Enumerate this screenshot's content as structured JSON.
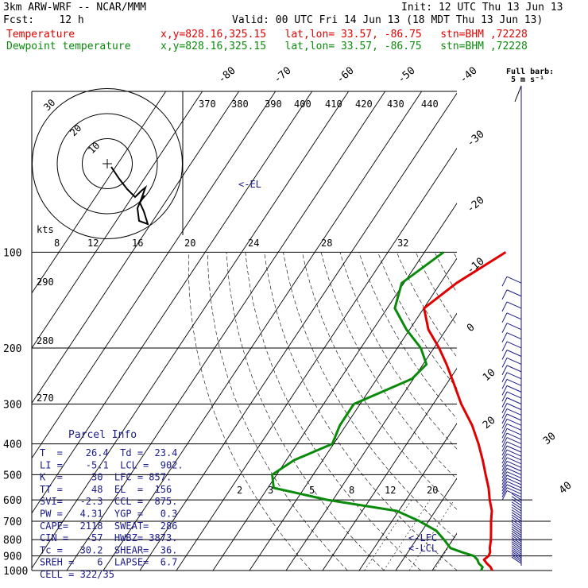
{
  "header": {
    "model": "3km ARW-WRF -- NCAR/MMM",
    "init": "Init: 12 UTC Thu 13 Jun 13",
    "fcst": "Fcst:    12 h",
    "valid": "Valid: 00 UTC Fri 14 Jun 13 (18 MDT Thu 13 Jun 13)",
    "temperature_label": "Temperature",
    "dewpoint_label": "Dewpoint temperature",
    "temp_loc": "x,y=828.16,325.15   lat,lon= 33.57, -86.75   stn=BHM ,72228",
    "dew_loc": "x,y=828.16,325.15   lat,lon= 33.57, -86.75   stn=BHM ,72228"
  },
  "colors": {
    "temperature": "#e00000",
    "dewpoint": "#0a8a0a",
    "text_blue": "#1a1a8a",
    "barb": "#1a1a8a",
    "grid": "#000000"
  },
  "legend_barb": {
    "line1": "Full barb:",
    "line2": "5 m s⁻¹"
  },
  "skewt_labels": {
    "dry_adiabats": [
      "370",
      "380",
      "390",
      "400",
      "410",
      "420",
      "430",
      "440"
    ],
    "isotherms_top": [
      "-80",
      "-70",
      "-60",
      "-50",
      "-40"
    ],
    "isotherms_right": [
      "-30",
      "-20",
      "-10",
      "0",
      "10",
      "20",
      "30",
      "40"
    ],
    "mixing_ratio": [
      "2",
      "3",
      "5",
      "8",
      "12",
      "20"
    ],
    "el_label": "<-EL",
    "lfc_label": "<-LFC",
    "lcl_label": "<-LCL"
  },
  "hodograph": {
    "unit": "kts",
    "ring_labels": [
      "30",
      "20",
      "10"
    ],
    "axis_ticks": [
      "8",
      "12",
      "16",
      "20",
      "24",
      "28",
      "32"
    ],
    "theta_e_ticks": [
      "290",
      "280",
      "270"
    ]
  },
  "parcel_info": {
    "title": "Parcel Info",
    "rows": [
      "T  =    26.4  Td =  23.4",
      "LI =    -5.1  LCL =  902.",
      "K  =     30  LFC = 857.",
      "TT =     48  EL  =  156",
      "SVI=   -2.3  CCL =  875.",
      "PW =   4.31  YGP =   0.3",
      "CAPE=  2118  SWEAT=  286",
      "CIN =   -57  HWBZ= 3873.",
      "Tc =   30.2  SHEAR=  36.",
      "SREH =    6  LAPSE=  6.7",
      "CELL = 322/35"
    ]
  },
  "chart_data": {
    "type": "line",
    "title": "",
    "xlabel": "",
    "ylabel": "",
    "pressure_levels": [
      "100",
      "200",
      "300",
      "400",
      "500",
      "600",
      "700",
      "800",
      "900",
      "1000"
    ],
    "series": [
      {
        "name": "Temperature",
        "color": "#e00000",
        "pressure": [
          1000,
          975,
          950,
          925,
          900,
          875,
          850,
          800,
          750,
          700,
          650,
          600,
          550,
          500,
          450,
          400,
          350,
          300,
          250,
          225,
          200,
          175,
          150,
          125,
          100
        ],
        "values": [
          26.4,
          25.0,
          23.0,
          21.2,
          21.4,
          20.8,
          19.6,
          17.6,
          15.2,
          12.6,
          10.0,
          6.4,
          2.8,
          -1.6,
          -6.4,
          -12.0,
          -18.8,
          -27.6,
          -37.0,
          -42.5,
          -49.0,
          -57.0,
          -64.0,
          -62.0,
          -57.0
        ]
      },
      {
        "name": "Dewpoint temperature",
        "color": "#0a8a0a",
        "pressure": [
          1000,
          975,
          950,
          925,
          900,
          875,
          850,
          800,
          750,
          700,
          650,
          600,
          550,
          500,
          450,
          400,
          350,
          300,
          250,
          225,
          200,
          175,
          150,
          125,
          100
        ],
        "values": [
          23.4,
          22.8,
          20.8,
          19.4,
          17.4,
          13.0,
          8.8,
          4.8,
          0.2,
          -7.0,
          -16.0,
          -38.0,
          -56.0,
          -60.0,
          -58.0,
          -52.0,
          -55.0,
          -57.0,
          -48.0,
          -48.0,
          -54.0,
          -63.0,
          -72.0,
          -77.0,
          -74.0
        ]
      }
    ]
  }
}
